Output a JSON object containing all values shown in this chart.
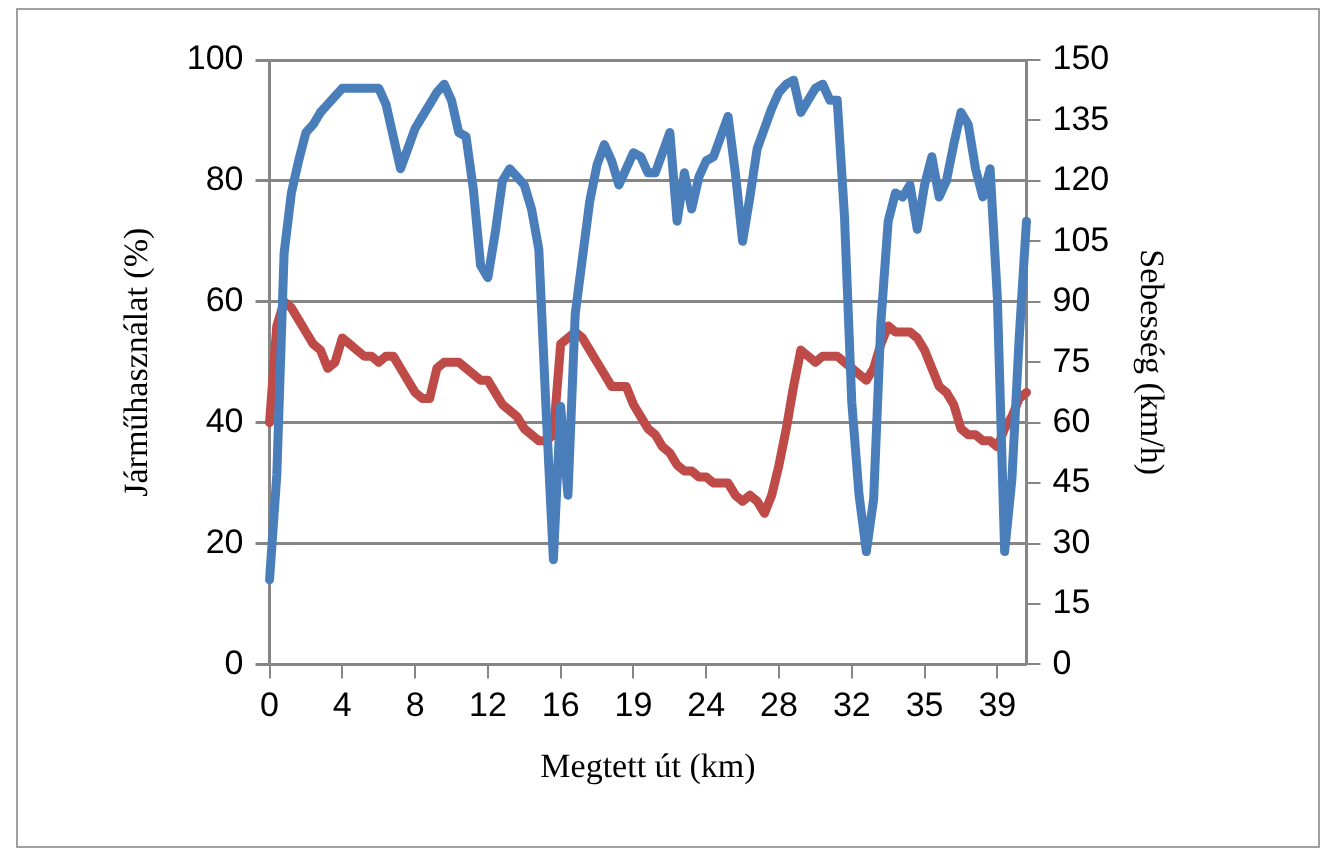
{
  "chart_data": {
    "type": "line",
    "xlabel": "Megtett út (km)",
    "ylabel": "Járműhasználat (%)",
    "y2label": "Sebesség (km/h)",
    "categories": [
      "0",
      null,
      null,
      null,
      null,
      null,
      null,
      null,
      null,
      null,
      "4",
      null,
      null,
      null,
      null,
      null,
      null,
      null,
      null,
      null,
      "8",
      null,
      null,
      null,
      null,
      null,
      null,
      null,
      null,
      null,
      "12",
      null,
      null,
      null,
      null,
      null,
      null,
      null,
      null,
      null,
      "16",
      null,
      null,
      null,
      null,
      null,
      null,
      null,
      null,
      null,
      "19",
      null,
      null,
      null,
      null,
      null,
      null,
      null,
      null,
      null,
      "24",
      null,
      null,
      null,
      null,
      null,
      null,
      null,
      null,
      null,
      "28",
      null,
      null,
      null,
      null,
      null,
      null,
      null,
      null,
      null,
      "32",
      null,
      null,
      null,
      null,
      null,
      null,
      null,
      null,
      null,
      "35",
      null,
      null,
      null,
      null,
      null,
      null,
      null,
      null,
      null,
      "39",
      null,
      null,
      null,
      null
    ],
    "series": [
      {
        "color": "#4a7ebb",
        "axis": "y2",
        "values": [
          21,
          47,
          102,
          117,
          125,
          132,
          134,
          137,
          139,
          141,
          143,
          143,
          143,
          143,
          143,
          143,
          139,
          131,
          123,
          128,
          133,
          136,
          139,
          142,
          144,
          140,
          132,
          131,
          118,
          99,
          96,
          107,
          120,
          123,
          121,
          119,
          113,
          103,
          63,
          26,
          64,
          42,
          87,
          101,
          115,
          124,
          129,
          125,
          119,
          123,
          127,
          126,
          122,
          122,
          127,
          132,
          110,
          122,
          113,
          121,
          125,
          126,
          131,
          136,
          122,
          105,
          116,
          128,
          133,
          138,
          142,
          144,
          145,
          137,
          140,
          143,
          144,
          140,
          140,
          111,
          65,
          42,
          28,
          41,
          85,
          110,
          117,
          116,
          119,
          108,
          119,
          126,
          116,
          120,
          129,
          137,
          134,
          123,
          116,
          123,
          91,
          28,
          46,
          81,
          110
        ]
      },
      {
        "color": "#be4b48",
        "axis": "y",
        "values": [
          40,
          56,
          60,
          59,
          57,
          55,
          53,
          52,
          49,
          50,
          54,
          53,
          52,
          51,
          51,
          50,
          51,
          51,
          49,
          47,
          45,
          44,
          44,
          49,
          50,
          50,
          50,
          49,
          48,
          47,
          47,
          45,
          43,
          42,
          41,
          39,
          38,
          37,
          37,
          38,
          53,
          54,
          55,
          54,
          52,
          50,
          48,
          46,
          46,
          46,
          43,
          41,
          39,
          38,
          36,
          35,
          33,
          32,
          32,
          31,
          31,
          30,
          30,
          30,
          28,
          27,
          28,
          27,
          25,
          28,
          33,
          39,
          46,
          52,
          51,
          50,
          51,
          51,
          51,
          50,
          49,
          48,
          47,
          49,
          53,
          56,
          55,
          55,
          55,
          54,
          52,
          49,
          46,
          45,
          43,
          39,
          38,
          38,
          37,
          37,
          36,
          39,
          41,
          44,
          45
        ]
      }
    ],
    "ylim": [
      0,
      100
    ],
    "yticks": [
      0,
      20,
      40,
      60,
      80,
      100
    ],
    "y2lim": [
      0,
      150
    ],
    "y2ticks": [
      0,
      15,
      30,
      45,
      60,
      75,
      90,
      105,
      120,
      135,
      150
    ],
    "grid": "y",
    "marker": "none",
    "line_style": "solid"
  }
}
